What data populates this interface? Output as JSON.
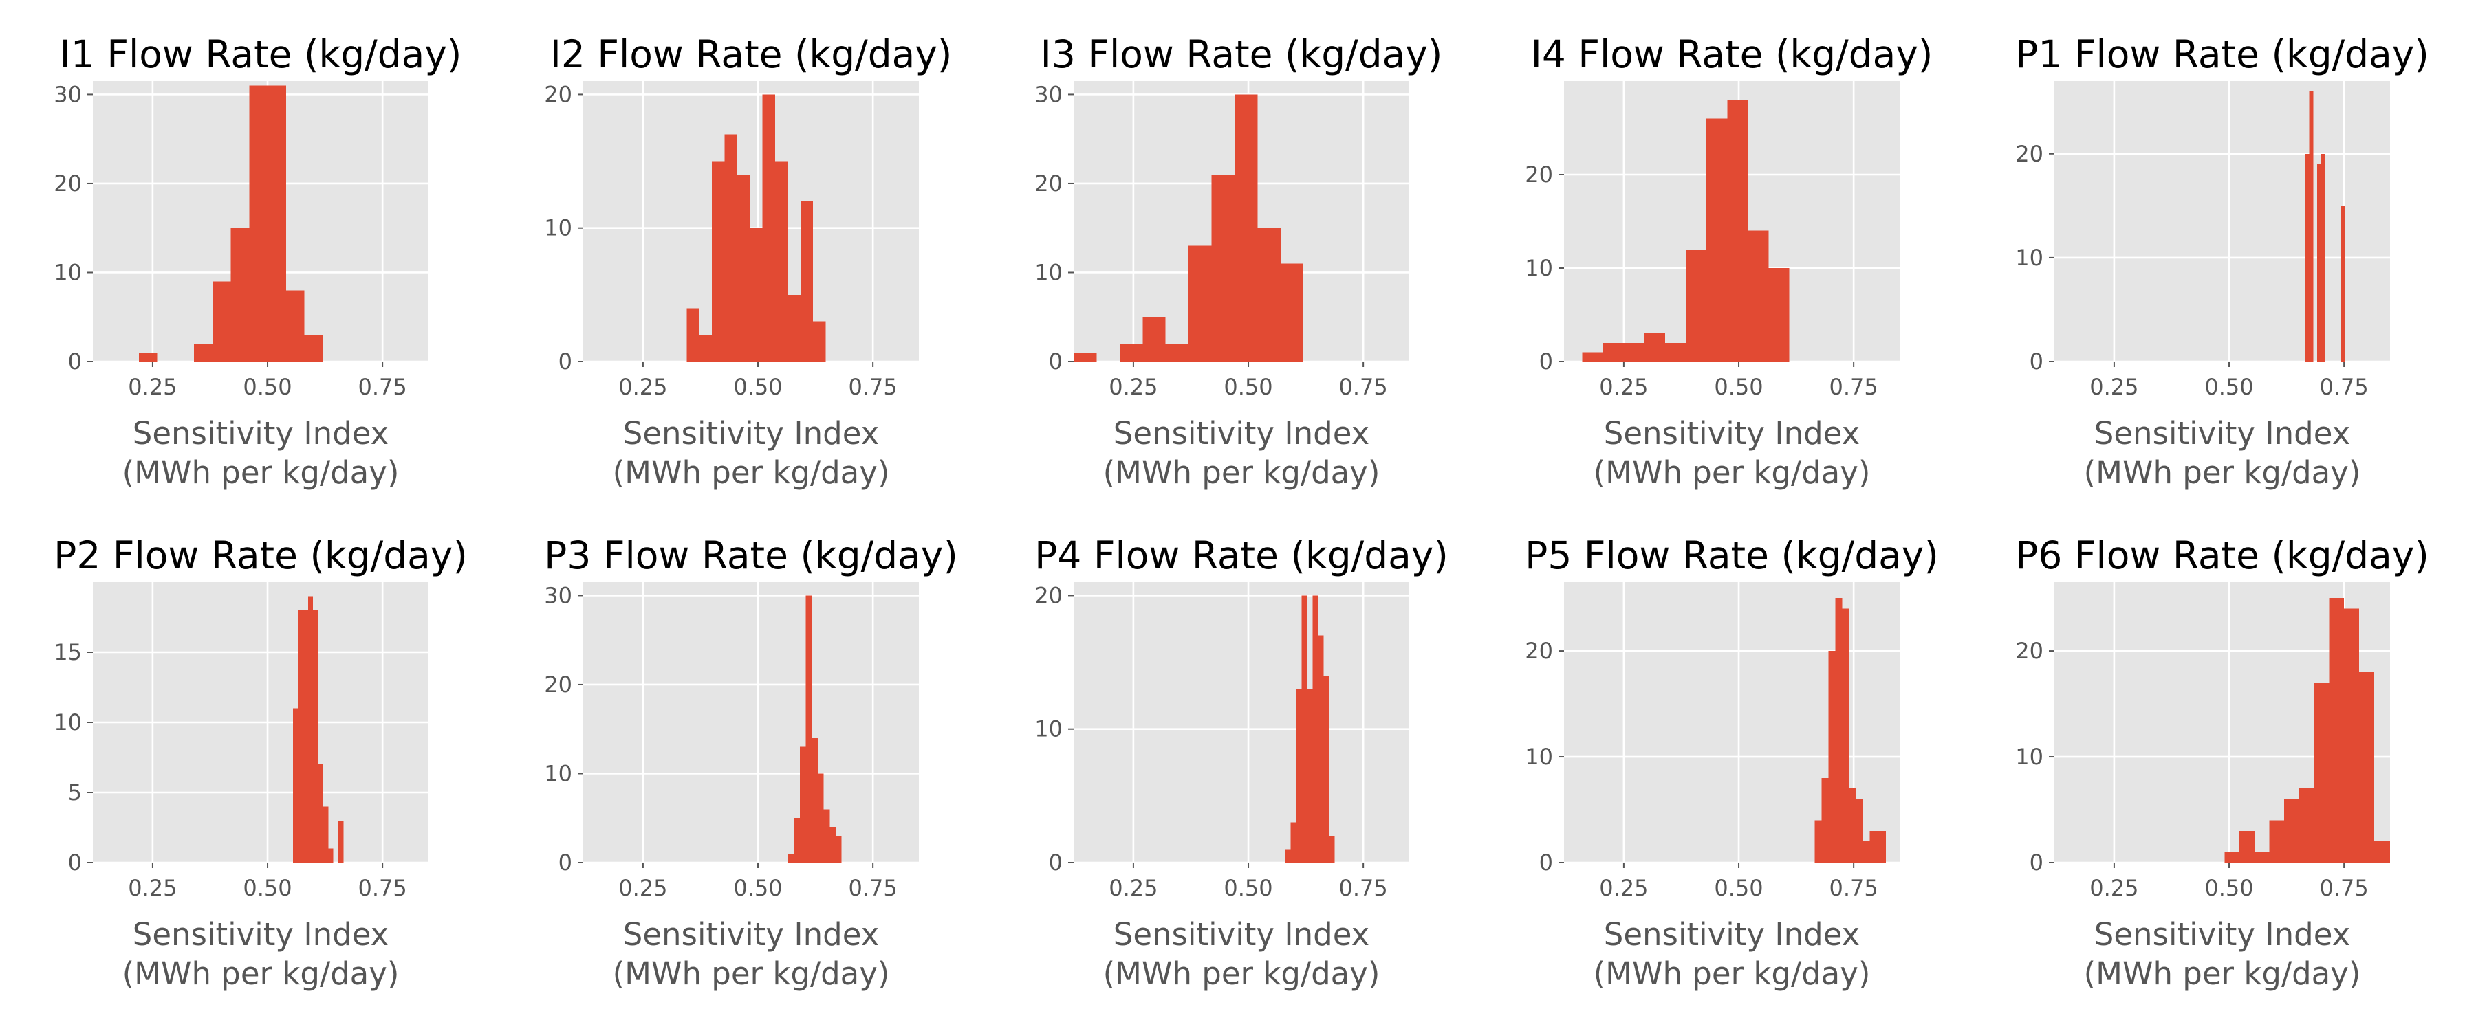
{
  "colors": {
    "bar": "#e24a33",
    "panel_background": "#e5e5e5",
    "grid": "#ffffff",
    "tick_text": "#555555",
    "title_text": "#000000"
  },
  "chart_data": [
    {
      "type": "bar",
      "title": "I1 Flow Rate (kg/day)",
      "xlabel": [
        "Sensitivity Index",
        "(MWh per kg/day)"
      ],
      "ylabel": "",
      "xlim": [
        0.12,
        0.85
      ],
      "ylim": [
        0,
        31.5
      ],
      "xticks": [
        0.25,
        0.5,
        0.75
      ],
      "xtick_labels": [
        "0.25",
        "0.50",
        "0.75"
      ],
      "yticks": [
        0,
        10,
        20,
        30
      ],
      "ytick_labels": [
        "0",
        "10",
        "20",
        "30"
      ],
      "grid": true,
      "bars": [
        {
          "x0": 0.22,
          "x1": 0.26,
          "value": 1
        },
        {
          "x0": 0.34,
          "x1": 0.38,
          "value": 2
        },
        {
          "x0": 0.38,
          "x1": 0.42,
          "value": 9
        },
        {
          "x0": 0.42,
          "x1": 0.46,
          "value": 15
        },
        {
          "x0": 0.46,
          "x1": 0.5,
          "value": 31
        },
        {
          "x0": 0.5,
          "x1": 0.54,
          "value": 31
        },
        {
          "x0": 0.54,
          "x1": 0.58,
          "value": 8
        },
        {
          "x0": 0.58,
          "x1": 0.62,
          "value": 3
        }
      ]
    },
    {
      "type": "bar",
      "title": "I2 Flow Rate (kg/day)",
      "xlabel": [
        "Sensitivity Index",
        "(MWh per kg/day)"
      ],
      "ylabel": "",
      "xlim": [
        0.12,
        0.85
      ],
      "ylim": [
        0,
        21
      ],
      "xticks": [
        0.25,
        0.5,
        0.75
      ],
      "xtick_labels": [
        "0.25",
        "0.50",
        "0.75"
      ],
      "yticks": [
        0,
        10,
        20
      ],
      "ytick_labels": [
        "0",
        "10",
        "20"
      ],
      "grid": true,
      "bars": [
        {
          "x0": 0.345,
          "x1": 0.3725,
          "value": 4
        },
        {
          "x0": 0.3725,
          "x1": 0.4,
          "value": 2
        },
        {
          "x0": 0.4,
          "x1": 0.4275,
          "value": 15
        },
        {
          "x0": 0.4275,
          "x1": 0.455,
          "value": 17
        },
        {
          "x0": 0.455,
          "x1": 0.4825,
          "value": 14
        },
        {
          "x0": 0.4825,
          "x1": 0.51,
          "value": 10
        },
        {
          "x0": 0.51,
          "x1": 0.5375,
          "value": 20
        },
        {
          "x0": 0.5375,
          "x1": 0.565,
          "value": 15
        },
        {
          "x0": 0.565,
          "x1": 0.5925,
          "value": 5
        },
        {
          "x0": 0.5925,
          "x1": 0.62,
          "value": 12
        },
        {
          "x0": 0.62,
          "x1": 0.6475,
          "value": 3
        }
      ]
    },
    {
      "type": "bar",
      "title": "I3 Flow Rate (kg/day)",
      "xlabel": [
        "Sensitivity Index",
        "(MWh per kg/day)"
      ],
      "ylabel": "",
      "xlim": [
        0.12,
        0.85
      ],
      "ylim": [
        0,
        31.5
      ],
      "xticks": [
        0.25,
        0.5,
        0.75
      ],
      "xtick_labels": [
        "0.25",
        "0.50",
        "0.75"
      ],
      "yticks": [
        0,
        10,
        20,
        30
      ],
      "ytick_labels": [
        "0",
        "10",
        "20",
        "30"
      ],
      "grid": true,
      "bars": [
        {
          "x0": 0.12,
          "x1": 0.17,
          "value": 1
        },
        {
          "x0": 0.22,
          "x1": 0.27,
          "value": 2
        },
        {
          "x0": 0.27,
          "x1": 0.32,
          "value": 5
        },
        {
          "x0": 0.32,
          "x1": 0.37,
          "value": 2
        },
        {
          "x0": 0.37,
          "x1": 0.42,
          "value": 13
        },
        {
          "x0": 0.42,
          "x1": 0.47,
          "value": 21
        },
        {
          "x0": 0.47,
          "x1": 0.52,
          "value": 30
        },
        {
          "x0": 0.52,
          "x1": 0.57,
          "value": 15
        },
        {
          "x0": 0.57,
          "x1": 0.62,
          "value": 11
        }
      ]
    },
    {
      "type": "bar",
      "title": "I4 Flow Rate (kg/day)",
      "xlabel": [
        "Sensitivity Index",
        "(MWh per kg/day)"
      ],
      "ylabel": "",
      "xlim": [
        0.12,
        0.85
      ],
      "ylim": [
        0,
        30
      ],
      "xticks": [
        0.25,
        0.5,
        0.75
      ],
      "xtick_labels": [
        "0.25",
        "0.50",
        "0.75"
      ],
      "yticks": [
        0,
        10,
        20
      ],
      "ytick_labels": [
        "0",
        "10",
        "20"
      ],
      "grid": true,
      "bars": [
        {
          "x0": 0.16,
          "x1": 0.205,
          "value": 1
        },
        {
          "x0": 0.205,
          "x1": 0.25,
          "value": 2
        },
        {
          "x0": 0.25,
          "x1": 0.295,
          "value": 2
        },
        {
          "x0": 0.295,
          "x1": 0.34,
          "value": 3
        },
        {
          "x0": 0.34,
          "x1": 0.385,
          "value": 2
        },
        {
          "x0": 0.385,
          "x1": 0.43,
          "value": 12
        },
        {
          "x0": 0.43,
          "x1": 0.475,
          "value": 26
        },
        {
          "x0": 0.475,
          "x1": 0.52,
          "value": 28
        },
        {
          "x0": 0.52,
          "x1": 0.565,
          "value": 14
        },
        {
          "x0": 0.565,
          "x1": 0.61,
          "value": 10
        }
      ]
    },
    {
      "type": "bar",
      "title": "P1 Flow Rate (kg/day)",
      "xlabel": [
        "Sensitivity Index",
        "(MWh per kg/day)"
      ],
      "ylabel": "",
      "xlim": [
        0.12,
        0.85
      ],
      "ylim": [
        0,
        27
      ],
      "xticks": [
        0.25,
        0.5,
        0.75
      ],
      "xtick_labels": [
        "0.25",
        "0.50",
        "0.75"
      ],
      "yticks": [
        0,
        10,
        20
      ],
      "ytick_labels": [
        "0",
        "10",
        "20"
      ],
      "grid": true,
      "bars": [
        {
          "x0": 0.666,
          "x1": 0.6745,
          "value": 20
        },
        {
          "x0": 0.6745,
          "x1": 0.683,
          "value": 26
        },
        {
          "x0": 0.683,
          "x1": 0.6915,
          "value": 0
        },
        {
          "x0": 0.6915,
          "x1": 0.7,
          "value": 19
        },
        {
          "x0": 0.7,
          "x1": 0.7085,
          "value": 20
        },
        {
          "x0": 0.7085,
          "x1": 0.717,
          "value": 0
        },
        {
          "x0": 0.717,
          "x1": 0.7255,
          "value": 0
        },
        {
          "x0": 0.7255,
          "x1": 0.734,
          "value": 0
        },
        {
          "x0": 0.734,
          "x1": 0.7425,
          "value": 0
        },
        {
          "x0": 0.7425,
          "x1": 0.751,
          "value": 15
        }
      ]
    },
    {
      "type": "bar",
      "title": "P2 Flow Rate (kg/day)",
      "xlabel": [
        "Sensitivity Index",
        "(MWh per kg/day)"
      ],
      "ylabel": "",
      "xlim": [
        0.12,
        0.85
      ],
      "ylim": [
        0,
        20
      ],
      "xticks": [
        0.25,
        0.5,
        0.75
      ],
      "xtick_labels": [
        "0.25",
        "0.50",
        "0.75"
      ],
      "yticks": [
        0,
        5,
        10,
        15
      ],
      "ytick_labels": [
        "0",
        "5",
        "10",
        "15"
      ],
      "grid": true,
      "bars": [
        {
          "x0": 0.555,
          "x1": 0.566,
          "value": 11
        },
        {
          "x0": 0.566,
          "x1": 0.577,
          "value": 18
        },
        {
          "x0": 0.577,
          "x1": 0.588,
          "value": 18
        },
        {
          "x0": 0.588,
          "x1": 0.599,
          "value": 19
        },
        {
          "x0": 0.599,
          "x1": 0.61,
          "value": 18
        },
        {
          "x0": 0.61,
          "x1": 0.621,
          "value": 7
        },
        {
          "x0": 0.621,
          "x1": 0.632,
          "value": 4
        },
        {
          "x0": 0.632,
          "x1": 0.643,
          "value": 1
        },
        {
          "x0": 0.643,
          "x1": 0.654,
          "value": 0
        },
        {
          "x0": 0.654,
          "x1": 0.665,
          "value": 3
        }
      ]
    },
    {
      "type": "bar",
      "title": "P3 Flow Rate (kg/day)",
      "xlabel": [
        "Sensitivity Index",
        "(MWh per kg/day)"
      ],
      "ylabel": "",
      "xlim": [
        0.12,
        0.85
      ],
      "ylim": [
        0,
        31.5
      ],
      "xticks": [
        0.25,
        0.5,
        0.75
      ],
      "xtick_labels": [
        "0.25",
        "0.50",
        "0.75"
      ],
      "yticks": [
        0,
        10,
        20,
        30
      ],
      "ytick_labels": [
        "0",
        "10",
        "20",
        "30"
      ],
      "grid": true,
      "bars": [
        {
          "x0": 0.565,
          "x1": 0.578,
          "value": 1
        },
        {
          "x0": 0.578,
          "x1": 0.591,
          "value": 5
        },
        {
          "x0": 0.591,
          "x1": 0.604,
          "value": 13
        },
        {
          "x0": 0.604,
          "x1": 0.617,
          "value": 30
        },
        {
          "x0": 0.617,
          "x1": 0.63,
          "value": 14
        },
        {
          "x0": 0.63,
          "x1": 0.643,
          "value": 10
        },
        {
          "x0": 0.643,
          "x1": 0.656,
          "value": 6
        },
        {
          "x0": 0.656,
          "x1": 0.669,
          "value": 4
        },
        {
          "x0": 0.669,
          "x1": 0.682,
          "value": 3
        }
      ]
    },
    {
      "type": "bar",
      "title": "P4 Flow Rate (kg/day)",
      "xlabel": [
        "Sensitivity Index",
        "(MWh per kg/day)"
      ],
      "ylabel": "",
      "xlim": [
        0.12,
        0.85
      ],
      "ylim": [
        0,
        21
      ],
      "xticks": [
        0.25,
        0.5,
        0.75
      ],
      "xtick_labels": [
        "0.25",
        "0.50",
        "0.75"
      ],
      "yticks": [
        0,
        10,
        20
      ],
      "ytick_labels": [
        "0",
        "10",
        "20"
      ],
      "grid": true,
      "bars": [
        {
          "x0": 0.58,
          "x1": 0.592,
          "value": 1
        },
        {
          "x0": 0.592,
          "x1": 0.604,
          "value": 3
        },
        {
          "x0": 0.604,
          "x1": 0.616,
          "value": 13
        },
        {
          "x0": 0.616,
          "x1": 0.628,
          "value": 20
        },
        {
          "x0": 0.628,
          "x1": 0.64,
          "value": 13
        },
        {
          "x0": 0.64,
          "x1": 0.652,
          "value": 20
        },
        {
          "x0": 0.652,
          "x1": 0.664,
          "value": 17
        },
        {
          "x0": 0.664,
          "x1": 0.676,
          "value": 14
        },
        {
          "x0": 0.676,
          "x1": 0.688,
          "value": 2
        }
      ]
    },
    {
      "type": "bar",
      "title": "P5 Flow Rate (kg/day)",
      "xlabel": [
        "Sensitivity Index",
        "(MWh per kg/day)"
      ],
      "ylabel": "",
      "xlim": [
        0.12,
        0.85
      ],
      "ylim": [
        0,
        26.5
      ],
      "xticks": [
        0.25,
        0.5,
        0.75
      ],
      "xtick_labels": [
        "0.25",
        "0.50",
        "0.75"
      ],
      "yticks": [
        0,
        10,
        20
      ],
      "ytick_labels": [
        "0",
        "10",
        "20"
      ],
      "grid": true,
      "bars": [
        {
          "x0": 0.665,
          "x1": 0.68,
          "value": 4
        },
        {
          "x0": 0.68,
          "x1": 0.695,
          "value": 8
        },
        {
          "x0": 0.695,
          "x1": 0.71,
          "value": 20
        },
        {
          "x0": 0.71,
          "x1": 0.725,
          "value": 25
        },
        {
          "x0": 0.725,
          "x1": 0.74,
          "value": 24
        },
        {
          "x0": 0.74,
          "x1": 0.755,
          "value": 7
        },
        {
          "x0": 0.755,
          "x1": 0.77,
          "value": 6
        },
        {
          "x0": 0.77,
          "x1": 0.785,
          "value": 2
        },
        {
          "x0": 0.785,
          "x1": 0.8,
          "value": 3
        },
        {
          "x0": 0.8,
          "x1": 0.82,
          "value": 3
        }
      ]
    },
    {
      "type": "bar",
      "title": "P6 Flow Rate (kg/day)",
      "xlabel": [
        "Sensitivity Index",
        "(MWh per kg/day)"
      ],
      "ylabel": "",
      "xlim": [
        0.12,
        0.85
      ],
      "ylim": [
        0,
        26.5
      ],
      "xticks": [
        0.25,
        0.5,
        0.75
      ],
      "xtick_labels": [
        "0.25",
        "0.50",
        "0.75"
      ],
      "yticks": [
        0,
        10,
        20
      ],
      "ytick_labels": [
        "0",
        "10",
        "20"
      ],
      "grid": true,
      "bars": [
        {
          "x0": 0.49,
          "x1": 0.5225,
          "value": 1
        },
        {
          "x0": 0.5225,
          "x1": 0.555,
          "value": 3
        },
        {
          "x0": 0.555,
          "x1": 0.5875,
          "value": 1
        },
        {
          "x0": 0.5875,
          "x1": 0.62,
          "value": 4
        },
        {
          "x0": 0.62,
          "x1": 0.6525,
          "value": 6
        },
        {
          "x0": 0.6525,
          "x1": 0.685,
          "value": 7
        },
        {
          "x0": 0.685,
          "x1": 0.7175,
          "value": 17
        },
        {
          "x0": 0.7175,
          "x1": 0.75,
          "value": 25
        },
        {
          "x0": 0.75,
          "x1": 0.7825,
          "value": 24
        },
        {
          "x0": 0.7825,
          "x1": 0.815,
          "value": 18
        },
        {
          "x0": 0.815,
          "x1": 0.85,
          "value": 2
        }
      ]
    }
  ]
}
